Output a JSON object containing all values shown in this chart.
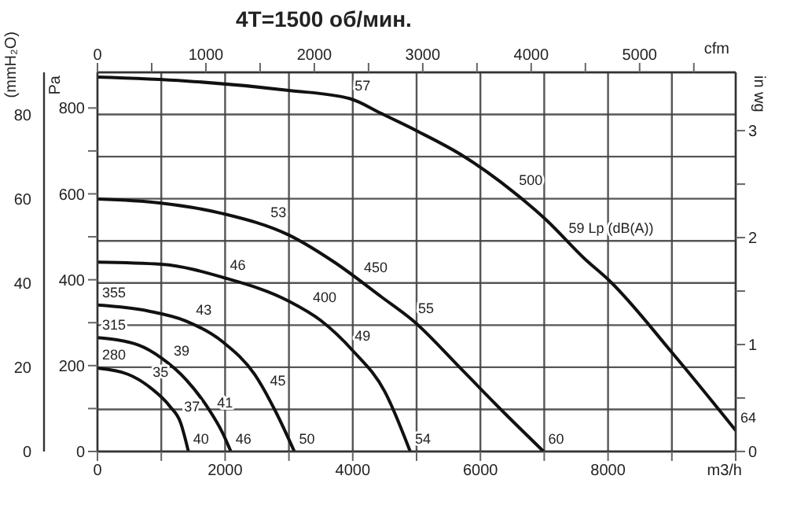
{
  "chart_data": {
    "type": "line",
    "title": "4T=1500 об/мин.",
    "xlabel": "m3/h",
    "ylabel": "Pa",
    "y2label": "(mmH₂O)",
    "y3label": "in wg",
    "x2label": "cfm",
    "xlim": [
      0,
      10000
    ],
    "xticks": [
      0,
      {
        "value": 1000,
        "label": null
      },
      2000,
      {
        "value": 3000,
        "label": null
      },
      4000,
      {
        "value": 5000,
        "label": null
      },
      6000,
      {
        "value": 7000,
        "label": null
      },
      8000,
      {
        "value": 9000,
        "label": null
      },
      {
        "value": 10000,
        "label": null
      }
    ],
    "x2lim": [
      0,
      5886
    ],
    "x2ticks": [
      0,
      {
        "value": 500,
        "label": null
      },
      1000,
      {
        "value": 1500,
        "label": null
      },
      2000,
      {
        "value": 2500,
        "label": null
      },
      3000,
      {
        "value": 3500,
        "label": null
      },
      4000,
      {
        "value": 4500,
        "label": null
      },
      5000,
      {
        "value": 5500,
        "label": null
      }
    ],
    "ylim": [
      0,
      883
    ],
    "yticks": [
      0,
      {
        "value": 100,
        "label": null
      },
      200,
      {
        "value": 300,
        "label": null
      },
      400,
      {
        "value": 500,
        "label": null
      },
      600,
      {
        "value": 700,
        "label": null
      },
      800
    ],
    "y2lim": [
      0,
      90
    ],
    "y2ticks": [
      0,
      {
        "value": 10,
        "label": null
      },
      20,
      {
        "value": 30,
        "label": null
      },
      40,
      {
        "value": 50,
        "label": null
      },
      60,
      {
        "value": 70,
        "label": null
      },
      80,
      {
        "value": 90,
        "label": null
      }
    ],
    "y3lim": [
      0,
      3.545
    ],
    "y3ticks": [
      0,
      {
        "value": 0.5,
        "label": null
      },
      1,
      {
        "value": 1.5,
        "label": null
      },
      2,
      {
        "value": 2.5,
        "label": null
      },
      3
    ],
    "grid": true,
    "marker": "none",
    "line_style": "solid",
    "series": [
      {
        "color": "#111111",
        "x": [
          0,
          475,
          800,
          1135,
          1300,
          1425
        ],
        "values": [
          194,
          180,
          152,
          105,
          68,
          0
        ]
      },
      {
        "color": "#111111",
        "x": [
          0,
          640,
          1010,
          1385,
          1715,
          1965,
          2090
        ],
        "values": [
          265,
          248,
          217,
          168,
          105,
          42,
          0
        ]
      },
      {
        "color": "#111111",
        "x": [
          0,
          800,
          1385,
          1965,
          2460,
          2795,
          3085
        ],
        "values": [
          341,
          327,
          304,
          255,
          180,
          92,
          0
        ]
      },
      {
        "color": "#111111",
        "x": [
          0,
          1000,
          2000,
          3000,
          3500,
          4000,
          4500,
          4900
        ],
        "values": [
          441,
          436,
          404,
          350,
          305,
          235,
          140,
          0
        ]
      },
      {
        "color": "#111111",
        "x": [
          0,
          970,
          1965,
          3000,
          3710,
          4450,
          4950,
          5700,
          6360,
          6990
        ],
        "values": [
          588,
          579,
          554,
          504,
          441,
          360,
          304,
          192,
          92,
          0
        ]
      },
      {
        "color": "#111111",
        "x": [
          0,
          1385,
          3000,
          3950,
          4450,
          5000,
          5700,
          6530,
          7020,
          7640,
          8020,
          9010,
          10000
        ],
        "values": [
          872,
          863,
          841,
          822,
          787,
          747,
          691,
          603,
          541,
          448,
          398,
          229,
          49
        ]
      }
    ],
    "annotations": [
      {
        "text": "280",
        "x": 0,
        "y": 196
      },
      {
        "text": "315",
        "x": 0,
        "y": 265
      },
      {
        "text": "355",
        "x": 0,
        "y": 341
      },
      {
        "text": "400",
        "x": 3300,
        "y": 330
      },
      {
        "text": "450",
        "x": 4100,
        "y": 400
      },
      {
        "text": "500",
        "x": 6530,
        "y": 603
      },
      {
        "text": "35",
        "x": 790,
        "y": 155
      },
      {
        "text": "37",
        "x": 1285,
        "y": 75
      },
      {
        "text": "40",
        "x": 1425,
        "y": 0
      },
      {
        "text": "39",
        "x": 1120,
        "y": 205
      },
      {
        "text": "41",
        "x": 1800,
        "y": 85
      },
      {
        "text": "46",
        "x": 2090,
        "y": 0
      },
      {
        "text": "43",
        "x": 1470,
        "y": 300
      },
      {
        "text": "45",
        "x": 2630,
        "y": 135
      },
      {
        "text": "50",
        "x": 3085,
        "y": 0
      },
      {
        "text": "46",
        "x": 2000,
        "y": 404
      },
      {
        "text": "49",
        "x": 3955,
        "y": 240
      },
      {
        "text": "54",
        "x": 4900,
        "y": 0
      },
      {
        "text": "53",
        "x": 2640,
        "y": 527
      },
      {
        "text": "55",
        "x": 4950,
        "y": 304
      },
      {
        "text": "60",
        "x": 6990,
        "y": 0
      },
      {
        "text": "57",
        "x": 3955,
        "y": 822
      },
      {
        "text": "59 Lp (dB(A))",
        "x": 7310,
        "y": 491
      },
      {
        "text": "64",
        "x": 10000,
        "y": 49
      }
    ]
  }
}
